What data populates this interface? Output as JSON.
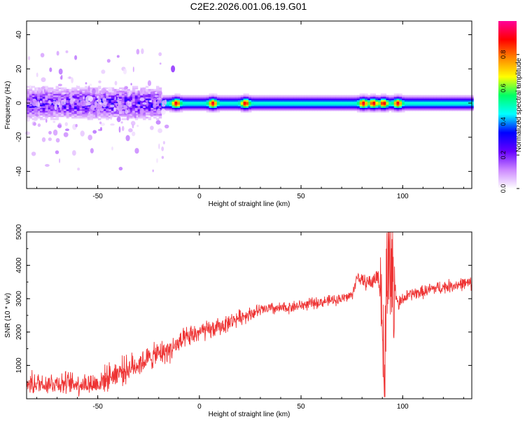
{
  "title": "C2E2.2026.001.06.19.G01",
  "chart_data": [
    {
      "type": "heatmap",
      "xlabel": "Height of straight line (km)",
      "ylabel": "Frequency (Hz)",
      "xlim": [
        -85,
        134
      ],
      "ylim": [
        -50,
        48
      ],
      "xticks": [
        -50,
        0,
        50,
        100
      ],
      "yticks": [
        -40,
        -20,
        0,
        20,
        40
      ],
      "colorbar": {
        "label": "Normalized spectral amplitude",
        "range": [
          0,
          1
        ],
        "ticks": [
          "0.0",
          "0.2",
          "0.4",
          "0.6",
          "0.8"
        ],
        "tick_values": [
          0.0,
          0.2,
          0.4,
          0.6,
          0.8
        ],
        "colormap": [
          "#ffffff",
          "#cc88ff",
          "#6600ff",
          "#0000ff",
          "#00ffff",
          "#00ff66",
          "#ffff00",
          "#ff8800",
          "#ff0000",
          "#ff0099"
        ]
      },
      "band_center_hz": 0,
      "band_halfwidth_hz": {
        "x_lt_-20": 7,
        "x_ge_-20": 3
      },
      "peak_amplitude_regions_km": [
        -12,
        6,
        22,
        80,
        85,
        90,
        97
      ]
    },
    {
      "type": "line",
      "xlabel": "Height of straight line (km)",
      "ylabel": "SNR (10 * v/v)",
      "xlim": [
        -85,
        134
      ],
      "ylim": [
        0,
        5000
      ],
      "xticks": [
        -50,
        0,
        50,
        100
      ],
      "yticks": [
        1000,
        2000,
        3000,
        4000,
        5000
      ],
      "color": "#ee3333",
      "series": [
        {
          "name": "SNR",
          "x": [
            -85,
            -70,
            -60,
            -50,
            -45,
            -40,
            -35,
            -30,
            -25,
            -20,
            -15,
            -10,
            -5,
            0,
            5,
            10,
            15,
            20,
            25,
            30,
            35,
            40,
            45,
            50,
            55,
            60,
            65,
            70,
            75,
            78,
            80,
            85,
            88,
            90,
            91,
            92,
            93,
            95,
            98,
            100,
            105,
            110,
            115,
            120,
            125,
            130,
            134
          ],
          "values": [
            450,
            480,
            450,
            450,
            650,
            800,
            900,
            1050,
            1200,
            1350,
            1450,
            1650,
            1850,
            2000,
            2050,
            2150,
            2300,
            2450,
            2550,
            2650,
            2700,
            2700,
            2750,
            2800,
            2850,
            2900,
            2950,
            3000,
            3100,
            3700,
            3500,
            3500,
            3700,
            2500,
            200,
            3800,
            4600,
            3500,
            2800,
            3000,
            3150,
            3200,
            3300,
            3350,
            3400,
            3450,
            3450
          ],
          "noise_amplitude": [
            350,
            350,
            350,
            380,
            400,
            420,
            420,
            400,
            380,
            380,
            380,
            360,
            340,
            320,
            300,
            280,
            260,
            240,
            220,
            200,
            200,
            190,
            190,
            180,
            180,
            170,
            170,
            170,
            180,
            200,
            220,
            260,
            300,
            300,
            0,
            300,
            350,
            300,
            260,
            200,
            200,
            200,
            210,
            210,
            200,
            200,
            200
          ]
        }
      ]
    }
  ]
}
